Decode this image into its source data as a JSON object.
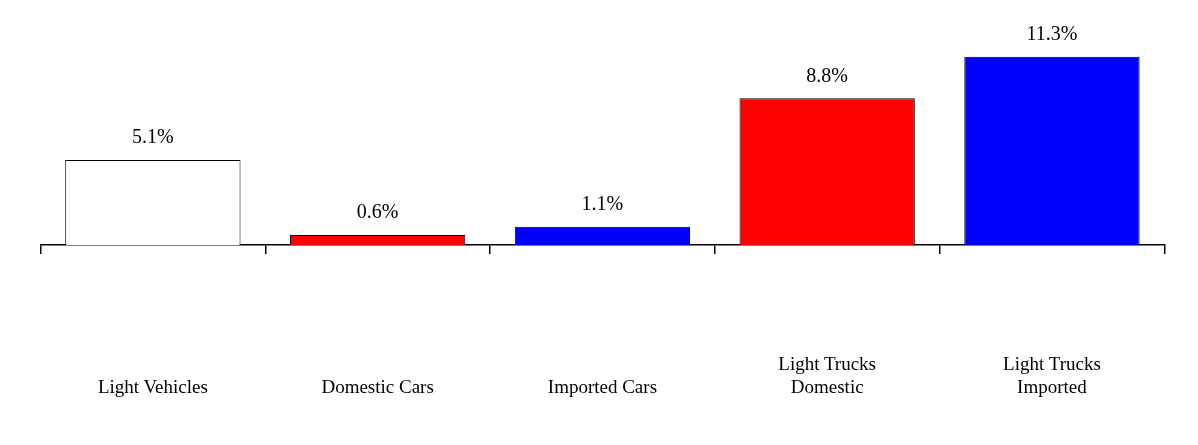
{
  "chart_data": {
    "type": "bar",
    "categories": [
      "Light Vehicles",
      "Domestic Cars",
      "Imported Cars",
      "Light Trucks\nDomestic",
      "Light Trucks\nImported"
    ],
    "values": [
      5.1,
      0.6,
      1.1,
      8.8,
      11.3
    ],
    "colors": [
      "#ffffff",
      "#ff0000",
      "#0000ff",
      "#ff0000",
      "#0000ff"
    ],
    "value_labels": [
      "5.1%",
      "0.6%",
      "1.1%",
      "8.8%",
      "11.3%"
    ],
    "grid": false,
    "legend": false
  }
}
